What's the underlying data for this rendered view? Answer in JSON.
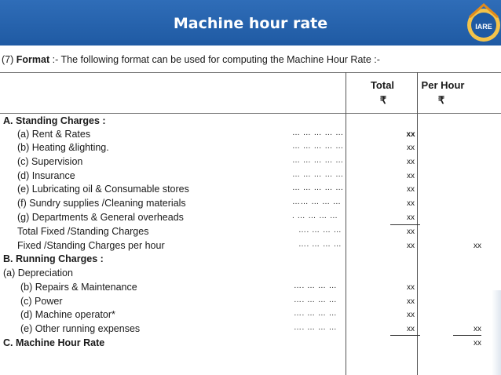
{
  "header": {
    "title": "Machine hour rate",
    "logo_text": "IARE"
  },
  "intro": {
    "prefix": "(7) ",
    "bold": "Format",
    "rest": " :- The following format can be used for computing the Machine Hour Rate :-"
  },
  "columns": {
    "total": "Total",
    "per_hour": "Per Hour",
    "currency": "₹"
  },
  "rows": [
    {
      "label": "A.  Standing Charges :",
      "dots": "",
      "total": "",
      "per_hour": ""
    },
    {
      "label": "(a)  Rent & Rates",
      "dots": "… … …   … …",
      "total": "xx",
      "per_hour": ""
    },
    {
      "label": "(b)  Heating &lighting.",
      "dots": "… … …   … …",
      "total": "xx",
      "per_hour": ""
    },
    {
      "label": "(c)  Supervision",
      "dots": "… … …   … …",
      "total": "xx",
      "per_hour": ""
    },
    {
      "label": "(d)  Insurance",
      "dots": "… … …   … …",
      "total": "xx",
      "per_hour": ""
    },
    {
      "label": "(e)  Lubricating oil & Consumable stores",
      "dots": "… … … …  …",
      "total": "xx",
      "per_hour": ""
    },
    {
      "label": "(f)   Sundry supplies /Cleaning materials",
      "dots": "…… … …  …",
      "total": "xx",
      "per_hour": ""
    },
    {
      "label": "(g)  Departments & General overheads",
      "dots": ". … … …  …",
      "total": "xx",
      "per_hour": ""
    },
    {
      "label": "Total Fixed /Standing Charges",
      "dots": "…. … …  …",
      "total": "xx",
      "per_hour": ""
    },
    {
      "label": "Fixed /Standing Charges per hour",
      "dots": "…. … …  …",
      "total": "xx",
      "per_hour": "xx"
    },
    {
      "label": "B.  Running Charges :",
      "dots": "",
      "total": "",
      "per_hour": ""
    },
    {
      "label": "(a)  Depreciation",
      "dots": "",
      "total": "",
      "per_hour": ""
    },
    {
      "label": "(b)  Repairs & Maintenance",
      "dots": "…. … …  …",
      "total": "xx",
      "per_hour": ""
    },
    {
      "label": "(c)   Power",
      "dots": "…. … …  …",
      "total": "xx",
      "per_hour": ""
    },
    {
      "label": "(d)   Machine operator*",
      "dots": "…. … …  …",
      "total": "xx",
      "per_hour": ""
    },
    {
      "label": "(e)   Other running expenses",
      "dots": "…. … …  …",
      "total": "xx",
      "per_hour": "xx"
    },
    {
      "label": "C. Machine Hour Rate",
      "dots": "",
      "total": "",
      "per_hour": "xx"
    }
  ]
}
